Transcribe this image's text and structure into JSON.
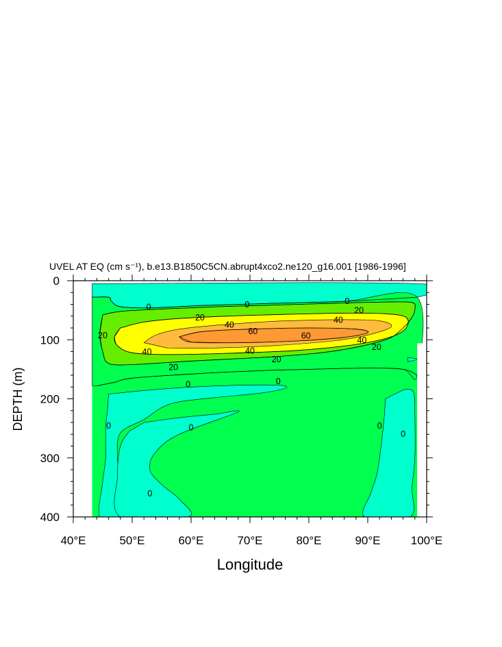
{
  "chart_data": {
    "type": "contour",
    "title": "UVEL AT EQ (cm s⁻¹), b.e13.B1850C5CN.abrupt4xco2.ne120_g16.001 [1986-1996]",
    "xlabel": "Longitude",
    "ylabel": "DEPTH (m)",
    "xlim": [
      40,
      100
    ],
    "ylim": [
      0,
      400
    ],
    "y_inverted": true,
    "x_ticks": [
      {
        "value": 40,
        "label": "40°E"
      },
      {
        "value": 50,
        "label": "50°E"
      },
      {
        "value": 60,
        "label": "60°E"
      },
      {
        "value": 70,
        "label": "70°E"
      },
      {
        "value": 80,
        "label": "80°E"
      },
      {
        "value": 90,
        "label": "90°E"
      },
      {
        "value": 100,
        "label": "100°E"
      }
    ],
    "y_ticks": [
      {
        "value": 0,
        "label": "0"
      },
      {
        "value": 100,
        "label": "100"
      },
      {
        "value": 200,
        "label": "200"
      },
      {
        "value": 300,
        "label": "300"
      },
      {
        "value": 400,
        "label": "400"
      }
    ],
    "x_minor_step": 2,
    "y_minor_step": 20,
    "contour_levels": [
      0,
      20,
      40,
      60
    ],
    "fill_colors": {
      "below_0": "#00ffcc",
      "0_to_20": "#00ff4f",
      "20_to_40": "#66ee00",
      "40_to_60": "#ffff00",
      "40_to_60_core": "#ffbb3c",
      "above_60": "#ff9933"
    },
    "regions": [
      {
        "name": "westward-surface",
        "fill": "below_0",
        "points": [
          [
            43.2,
            5
          ],
          [
            98.4,
            5
          ],
          [
            98.4,
            28
          ],
          [
            86,
            35
          ],
          [
            75,
            38
          ],
          [
            62,
            42
          ],
          [
            53,
            46
          ],
          [
            48,
            44
          ],
          [
            46.5,
            35
          ],
          [
            46,
            28
          ],
          [
            43.2,
            28
          ]
        ]
      },
      {
        "name": "eastward-shallow",
        "fill": "0_to_20",
        "points": [
          [
            43.2,
            28
          ],
          [
            46,
            28
          ],
          [
            46.5,
            35
          ],
          [
            48,
            44
          ],
          [
            53,
            46
          ],
          [
            62,
            42
          ],
          [
            75,
            38
          ],
          [
            86,
            35
          ],
          [
            98.4,
            28
          ],
          [
            98.4,
            160
          ],
          [
            96,
            150
          ],
          [
            90,
            148
          ],
          [
            80,
            150
          ],
          [
            70,
            153
          ],
          [
            60,
            158
          ],
          [
            50,
            165
          ],
          [
            47,
            172
          ],
          [
            44,
            178
          ],
          [
            43.2,
            178
          ]
        ]
      },
      {
        "name": "band-20",
        "fill": "20_to_40",
        "points": [
          [
            45,
            58
          ],
          [
            48,
            52
          ],
          [
            55,
            48
          ],
          [
            65,
            44
          ],
          [
            75,
            41
          ],
          [
            85,
            38
          ],
          [
            93,
            36
          ],
          [
            97.5,
            37
          ],
          [
            98,
            48
          ],
          [
            97.5,
            62
          ],
          [
            96,
            80
          ],
          [
            93,
            100
          ],
          [
            85,
            118
          ],
          [
            75,
            128
          ],
          [
            60,
            136
          ],
          [
            50,
            142
          ],
          [
            46,
            140
          ],
          [
            45,
            120
          ],
          [
            44.5,
            90
          ]
        ]
      },
      {
        "name": "band-40",
        "fill": "40_to_60",
        "points": [
          [
            48,
            80
          ],
          [
            52,
            70
          ],
          [
            58,
            64
          ],
          [
            66,
            60
          ],
          [
            76,
            57
          ],
          [
            86,
            55
          ],
          [
            93,
            56
          ],
          [
            96.5,
            62
          ],
          [
            96.5,
            80
          ],
          [
            94,
            95
          ],
          [
            88,
            108
          ],
          [
            78,
            118
          ],
          [
            66,
            123
          ],
          [
            56,
            125
          ],
          [
            50,
            122
          ],
          [
            47.5,
            110
          ],
          [
            47,
            95
          ]
        ]
      },
      {
        "name": "band-40-core",
        "fill": "40_to_60_core",
        "points": [
          [
            52,
            105
          ],
          [
            54,
            92
          ],
          [
            58,
            82
          ],
          [
            66,
            74
          ],
          [
            76,
            68
          ],
          [
            86,
            66
          ],
          [
            92,
            68
          ],
          [
            94,
            78
          ],
          [
            90,
            92
          ],
          [
            84,
            102
          ],
          [
            74,
            110
          ],
          [
            64,
            114
          ],
          [
            56,
            114
          ]
        ]
      },
      {
        "name": "core-60",
        "fill": "above_60",
        "points": [
          [
            58,
            95
          ],
          [
            62,
            86
          ],
          [
            70,
            82
          ],
          [
            80,
            80
          ],
          [
            88,
            82
          ],
          [
            90,
            88
          ],
          [
            86,
            96
          ],
          [
            78,
            102
          ],
          [
            68,
            105
          ],
          [
            60,
            104
          ]
        ]
      },
      {
        "name": "deep-west-return",
        "fill": "below_0",
        "points": [
          [
            46,
            192
          ],
          [
            52,
            186
          ],
          [
            60,
            180
          ],
          [
            68,
            177
          ],
          [
            75,
            177
          ],
          [
            76,
            182
          ],
          [
            72,
            190
          ],
          [
            64,
            198
          ],
          [
            58,
            205
          ],
          [
            55,
            215
          ],
          [
            52,
            235
          ],
          [
            48,
            258
          ],
          [
            47.5,
            300
          ],
          [
            48,
            340
          ],
          [
            48,
            400
          ],
          [
            44.5,
            400
          ],
          [
            45,
            340
          ],
          [
            45.5,
            300
          ],
          [
            45.5,
            250
          ],
          [
            45.8,
            220
          ]
        ]
      },
      {
        "name": "deep-west-lobe",
        "fill": "below_0",
        "points": [
          [
            52,
            240
          ],
          [
            58,
            232
          ],
          [
            64,
            226
          ],
          [
            68,
            222
          ],
          [
            58,
            260
          ],
          [
            54,
            290
          ],
          [
            53,
            320
          ],
          [
            55,
            345
          ],
          [
            58,
            370
          ],
          [
            59.5,
            400
          ],
          [
            48,
            400
          ],
          [
            47.5,
            330
          ],
          [
            48,
            280
          ],
          [
            49.5,
            255
          ]
        ]
      },
      {
        "name": "deep-east-return",
        "fill": "below_0",
        "points": [
          [
            93,
            200
          ],
          [
            95,
            190
          ],
          [
            96.5,
            184
          ],
          [
            97.8,
            190
          ],
          [
            98,
            230
          ],
          [
            98,
            300
          ],
          [
            97.5,
            350
          ],
          [
            97.2,
            400
          ],
          [
            89.5,
            400
          ],
          [
            90.5,
            360
          ],
          [
            91.5,
            330
          ],
          [
            92,
            300
          ],
          [
            92.5,
            260
          ],
          [
            92.8,
            230
          ]
        ]
      },
      {
        "name": "sliver-east",
        "fill": "below_0",
        "points": [
          [
            96.8,
            130
          ],
          [
            98.4,
            133
          ],
          [
            96.8,
            137
          ]
        ]
      }
    ],
    "contour_lines": [
      {
        "level": 0,
        "points": [
          [
            43.2,
            28
          ],
          [
            46,
            28
          ],
          [
            46.5,
            35
          ],
          [
            48,
            44
          ],
          [
            53,
            46
          ],
          [
            62,
            42
          ],
          [
            75,
            38
          ],
          [
            86,
            35
          ],
          [
            98.4,
            28
          ]
        ]
      },
      {
        "level": 0,
        "points": [
          [
            44,
            178
          ],
          [
            47,
            172
          ],
          [
            50,
            165
          ],
          [
            60,
            158
          ],
          [
            70,
            153
          ],
          [
            80,
            150
          ],
          [
            90,
            148
          ],
          [
            96,
            150
          ],
          [
            98.4,
            160
          ]
        ]
      },
      {
        "level": 20,
        "points": [
          [
            45,
            58
          ],
          [
            48,
            52
          ],
          [
            55,
            48
          ],
          [
            65,
            44
          ],
          [
            75,
            41
          ],
          [
            85,
            38
          ],
          [
            93,
            36
          ],
          [
            97.5,
            37
          ],
          [
            98,
            48
          ],
          [
            97.5,
            62
          ],
          [
            96,
            80
          ],
          [
            93,
            100
          ],
          [
            85,
            118
          ],
          [
            75,
            128
          ],
          [
            60,
            136
          ],
          [
            50,
            142
          ],
          [
            46,
            140
          ],
          [
            45,
            120
          ],
          [
            44.5,
            90
          ],
          [
            45,
            58
          ]
        ]
      },
      {
        "level": 40,
        "points": [
          [
            48,
            80
          ],
          [
            52,
            70
          ],
          [
            58,
            64
          ],
          [
            66,
            60
          ],
          [
            76,
            57
          ],
          [
            86,
            55
          ],
          [
            93,
            56
          ],
          [
            96.5,
            62
          ],
          [
            96.5,
            80
          ],
          [
            94,
            95
          ],
          [
            88,
            108
          ],
          [
            78,
            118
          ],
          [
            66,
            123
          ],
          [
            56,
            125
          ],
          [
            50,
            122
          ],
          [
            47.5,
            110
          ],
          [
            47,
            95
          ],
          [
            48,
            80
          ]
        ]
      },
      {
        "level": 60,
        "points": [
          [
            58,
            95
          ],
          [
            62,
            86
          ],
          [
            70,
            82
          ],
          [
            80,
            80
          ],
          [
            88,
            82
          ],
          [
            90,
            88
          ],
          [
            86,
            96
          ],
          [
            78,
            102
          ],
          [
            68,
            105
          ],
          [
            60,
            104
          ],
          [
            58,
            95
          ]
        ]
      }
    ],
    "contour_labels": [
      {
        "text": "0",
        "x": 52.8,
        "y": 44
      },
      {
        "text": "0",
        "x": 69.5,
        "y": 40
      },
      {
        "text": "0",
        "x": 86.5,
        "y": 34
      },
      {
        "text": "20",
        "x": 88.5,
        "y": 50
      },
      {
        "text": "20",
        "x": 61.5,
        "y": 62
      },
      {
        "text": "40",
        "x": 66.5,
        "y": 74
      },
      {
        "text": "40",
        "x": 85,
        "y": 66
      },
      {
        "text": "20",
        "x": 45,
        "y": 92
      },
      {
        "text": "60",
        "x": 70.5,
        "y": 85
      },
      {
        "text": "60",
        "x": 79.5,
        "y": 93
      },
      {
        "text": "40",
        "x": 52.5,
        "y": 120
      },
      {
        "text": "40",
        "x": 70,
        "y": 118
      },
      {
        "text": "40",
        "x": 89,
        "y": 100
      },
      {
        "text": "20",
        "x": 91.5,
        "y": 112
      },
      {
        "text": "20",
        "x": 74.5,
        "y": 133
      },
      {
        "text": "20",
        "x": 57,
        "y": 146
      },
      {
        "text": "0",
        "x": 59.5,
        "y": 175
      },
      {
        "text": "0",
        "x": 74.8,
        "y": 170
      },
      {
        "text": "0",
        "x": 46,
        "y": 245
      },
      {
        "text": "0",
        "x": 60,
        "y": 248
      },
      {
        "text": "0",
        "x": 92,
        "y": 245
      },
      {
        "text": "0",
        "x": 96,
        "y": 259
      },
      {
        "text": "0",
        "x": 53,
        "y": 360
      }
    ],
    "ocean_extent": {
      "xmin": 43.2,
      "xmax": 98.4,
      "ymin": 5,
      "ymax": 400
    },
    "land_masks": [
      {
        "name": "east-notch",
        "points": [
          [
            98.4,
            106
          ],
          [
            100,
            106
          ],
          [
            100,
            400
          ],
          [
            98.4,
            400
          ]
        ]
      }
    ],
    "grid": false,
    "legend": "none"
  }
}
